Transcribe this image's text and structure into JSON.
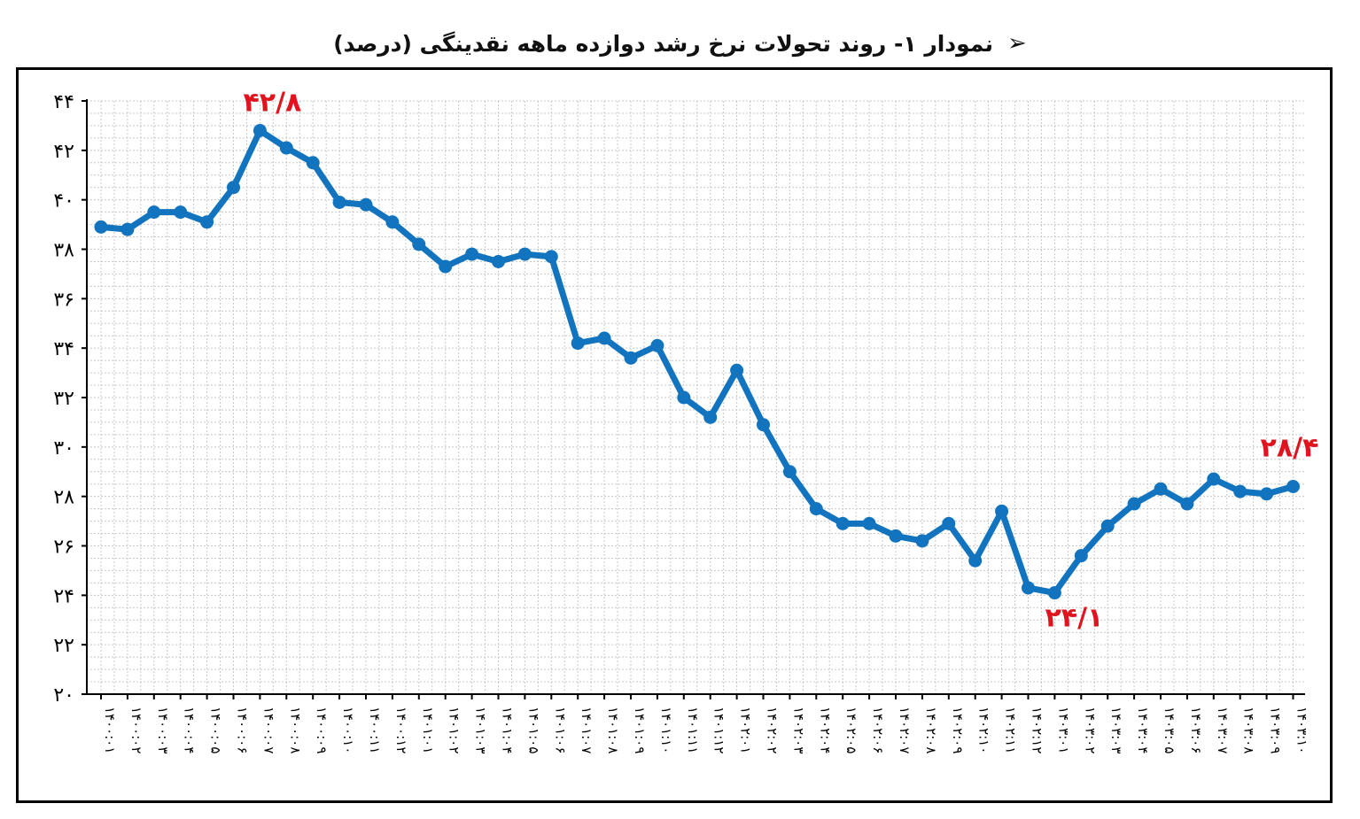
{
  "title": "نمودار ۱- روند تحولات نرخ رشد دوازده ماهه نقدینگی (درصد)",
  "title_marker": "➢",
  "colors": {
    "line": "#1273be",
    "annotation": "#e0141e",
    "grid": "#c8c8c8",
    "axis": "#000000"
  },
  "chart_data": {
    "type": "line",
    "title": "نمودار ۱- روند تحولات نرخ رشد دوازده ماهه نقدینگی (درصد)",
    "ylim": [
      20,
      44
    ],
    "yticks": [
      "۲۰",
      "۲۲",
      "۲۴",
      "۲۶",
      "۲۸",
      "۳۰",
      "۳۲",
      "۳۴",
      "۳۶",
      "۳۸",
      "۴۰",
      "۴۲",
      "۴۴"
    ],
    "grid": true,
    "legend": "none",
    "categories": [
      "۱۴۰۰:۰۱",
      "۱۴۰۰:۰۲",
      "۱۴۰۰:۰۳",
      "۱۴۰۰:۰۴",
      "۱۴۰۰:۰۵",
      "۱۴۰۰:۰۶",
      "۱۴۰۰:۰۷",
      "۱۴۰۰:۰۸",
      "۱۴۰۰:۰۹",
      "۱۴۰۰:۱۰",
      "۱۴۰۰:۱۱",
      "۱۴۰۰:۱۲",
      "۱۴۰۱:۰۱",
      "۱۴۰۱:۰۲",
      "۱۴۰۱:۰۳",
      "۱۴۰۱:۰۴",
      "۱۴۰۱:۰۵",
      "۱۴۰۱:۰۶",
      "۱۴۰۱:۰۷",
      "۱۴۰۱:۰۸",
      "۱۴۰۱:۰۹",
      "۱۴۰۱:۱۰",
      "۱۴۰۱:۱۱",
      "۱۴۰۱:۱۲",
      "۱۴۰۲:۰۱",
      "۱۴۰۲:۰۲",
      "۱۴۰۲:۰۳",
      "۱۴۰۲:۰۴",
      "۱۴۰۲:۰۵",
      "۱۴۰۲:۰۶",
      "۱۴۰۲:۰۷",
      "۱۴۰۲:۰۸",
      "۱۴۰۲:۰۹",
      "۱۴۰۲:۱۰",
      "۱۴۰۲:۱۱",
      "۱۴۰۲:۱۲",
      "۱۴۰۳:۰۱",
      "۱۴۰۳:۰۲",
      "۱۴۰۳:۰۳",
      "۱۴۰۳:۰۴",
      "۱۴۰۳:۰۵",
      "۱۴۰۳:۰۶",
      "۱۴۰۳:۰۷",
      "۱۴۰۳:۰۸",
      "۱۴۰۳:۰۹",
      "۱۴۰۳:۱۰"
    ],
    "series": [
      {
        "values": [
          38.9,
          38.8,
          39.5,
          39.5,
          39.1,
          40.5,
          42.8,
          42.1,
          41.5,
          39.9,
          39.8,
          39.1,
          38.2,
          37.3,
          37.8,
          37.5,
          37.8,
          37.7,
          34.2,
          34.4,
          33.6,
          34.1,
          32.0,
          31.2,
          33.1,
          30.9,
          29.0,
          27.5,
          26.9,
          26.9,
          26.4,
          26.2,
          26.9,
          25.4,
          27.4,
          24.3,
          24.1,
          25.6,
          26.8,
          27.7,
          28.3,
          27.7,
          28.7,
          28.2,
          28.1,
          28.4
        ]
      }
    ],
    "annotations": [
      {
        "label": "۴۲/۸",
        "index": 6,
        "value": 42.8,
        "position": "above"
      },
      {
        "label": "۲۴/۱",
        "index": 36,
        "value": 24.1,
        "position": "below"
      },
      {
        "label": "۲۸/۴",
        "index": 45,
        "value": 28.4,
        "position": "above"
      }
    ]
  }
}
